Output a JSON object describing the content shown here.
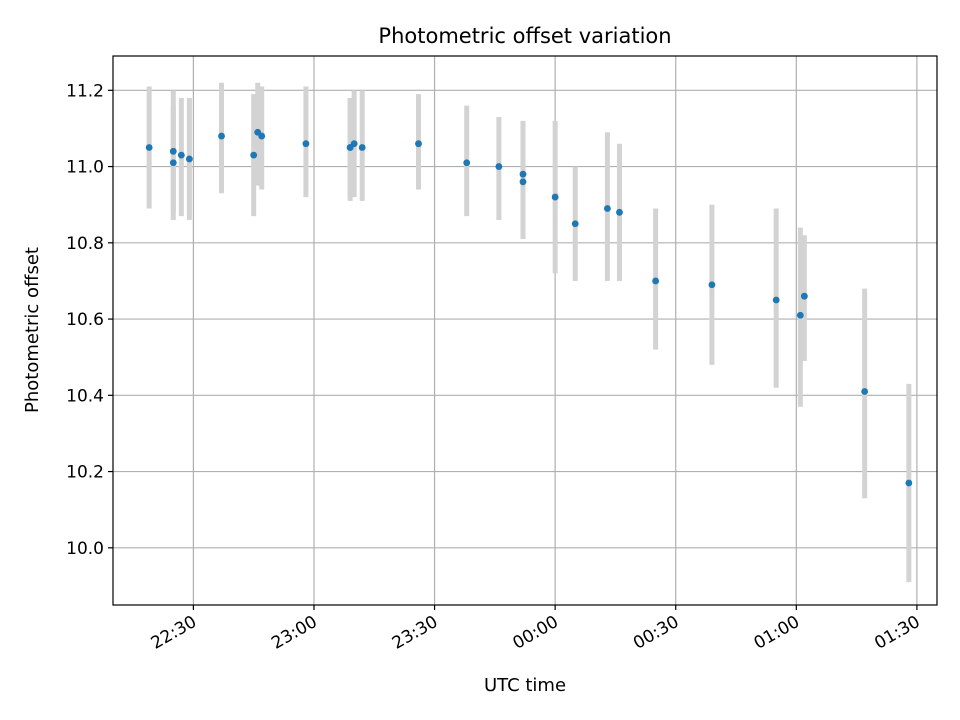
{
  "chart_data": {
    "type": "scatter",
    "title": "Photometric offset variation",
    "xlabel": "UTC time",
    "ylabel": "Photometric offset",
    "grid": true,
    "xlim": [
      "22:10",
      "01:35"
    ],
    "ylim": [
      9.85,
      11.29
    ],
    "x_ticks": [
      "22:30",
      "23:00",
      "23:30",
      "00:00",
      "00:30",
      "01:00",
      "01:30"
    ],
    "y_ticks": [
      "10.0",
      "10.2",
      "10.4",
      "10.6",
      "10.8",
      "11.0",
      "11.2"
    ],
    "marker_color": "#1f77b4",
    "errorbar_color": "#d3d3d3",
    "points": [
      {
        "x": "22:19",
        "y": 11.05,
        "low": 10.89,
        "high": 11.21
      },
      {
        "x": "22:25",
        "y": 11.04,
        "low": 10.88,
        "high": 11.2
      },
      {
        "x": "22:25",
        "y": 11.01,
        "low": 10.86,
        "high": 11.16
      },
      {
        "x": "22:27",
        "y": 11.03,
        "low": 10.87,
        "high": 11.18
      },
      {
        "x": "22:29",
        "y": 11.02,
        "low": 10.86,
        "high": 11.18
      },
      {
        "x": "22:37",
        "y": 11.08,
        "low": 10.93,
        "high": 11.22
      },
      {
        "x": "22:45",
        "y": 11.03,
        "low": 10.87,
        "high": 11.19
      },
      {
        "x": "22:46",
        "y": 11.09,
        "low": 10.95,
        "high": 11.22
      },
      {
        "x": "22:47",
        "y": 11.08,
        "low": 10.94,
        "high": 11.21
      },
      {
        "x": "22:58",
        "y": 11.06,
        "low": 10.92,
        "high": 11.21
      },
      {
        "x": "23:09",
        "y": 11.05,
        "low": 10.91,
        "high": 11.18
      },
      {
        "x": "23:10",
        "y": 11.06,
        "low": 10.92,
        "high": 11.2
      },
      {
        "x": "23:09",
        "y": 11.05,
        "low": 10.92,
        "high": 11.18
      },
      {
        "x": "23:12",
        "y": 11.05,
        "low": 10.91,
        "high": 11.2
      },
      {
        "x": "23:26",
        "y": 11.06,
        "low": 10.94,
        "high": 11.19
      },
      {
        "x": "23:38",
        "y": 11.01,
        "low": 10.87,
        "high": 11.16
      },
      {
        "x": "23:46",
        "y": 11.0,
        "low": 10.86,
        "high": 11.13
      },
      {
        "x": "23:52",
        "y": 10.96,
        "low": 10.81,
        "high": 11.11
      },
      {
        "x": "23:52",
        "y": 10.98,
        "low": 10.84,
        "high": 11.12
      },
      {
        "x": "00:00",
        "y": 10.92,
        "low": 10.72,
        "high": 11.12
      },
      {
        "x": "00:05",
        "y": 10.85,
        "low": 10.7,
        "high": 11.0
      },
      {
        "x": "00:13",
        "y": 10.89,
        "low": 10.7,
        "high": 11.09
      },
      {
        "x": "00:16",
        "y": 10.88,
        "low": 10.7,
        "high": 11.06
      },
      {
        "x": "00:25",
        "y": 10.7,
        "low": 10.52,
        "high": 10.89
      },
      {
        "x": "00:39",
        "y": 10.69,
        "low": 10.48,
        "high": 10.9
      },
      {
        "x": "00:55",
        "y": 10.65,
        "low": 10.42,
        "high": 10.89
      },
      {
        "x": "01:01",
        "y": 10.61,
        "low": 10.37,
        "high": 10.84
      },
      {
        "x": "01:02",
        "y": 10.66,
        "low": 10.49,
        "high": 10.82
      },
      {
        "x": "01:17",
        "y": 10.41,
        "low": 10.13,
        "high": 10.68
      },
      {
        "x": "01:28",
        "y": 10.17,
        "low": 9.91,
        "high": 10.43
      }
    ]
  }
}
